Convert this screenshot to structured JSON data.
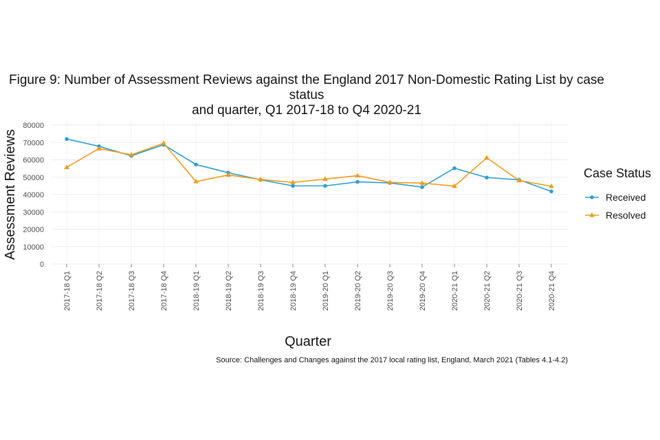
{
  "chart_data": {
    "type": "line",
    "title_line1": "Figure 9: Number of Assessment Reviews against the England 2017 Non-Domestic Rating List by case status",
    "title_line2": "and quarter, Q1 2017-18 to Q4 2020-21",
    "xlabel": "Quarter",
    "ylabel": "Assessment Reviews",
    "ylim": [
      0,
      80000
    ],
    "yticks": [
      0,
      10000,
      20000,
      30000,
      40000,
      50000,
      60000,
      70000,
      80000
    ],
    "grid": true,
    "legend_title": "Case Status",
    "legend_position": "right",
    "categories": [
      "2017-18 Q1",
      "2017-18 Q2",
      "2017-18 Q3",
      "2017-18 Q4",
      "2018-19 Q1",
      "2018-19 Q2",
      "2018-19 Q3",
      "2018-19 Q4",
      "2019-20 Q1",
      "2019-20 Q2",
      "2019-20 Q3",
      "2019-20 Q4",
      "2020-21 Q1",
      "2020-21 Q2",
      "2020-21 Q3",
      "2020-21 Q4"
    ],
    "series": [
      {
        "name": "Received",
        "color": "#2b9fd1",
        "marker": "circle",
        "values": [
          72000,
          67800,
          62300,
          68700,
          57300,
          52600,
          48500,
          45000,
          45000,
          47300,
          46700,
          44300,
          55200,
          49800,
          48500,
          41800
        ]
      },
      {
        "name": "Resolved",
        "color": "#f29a1a",
        "marker": "triangle",
        "values": [
          55700,
          66500,
          62900,
          69600,
          47500,
          51300,
          48700,
          47000,
          48900,
          50900,
          47000,
          46600,
          44900,
          61200,
          48100,
          44800
        ]
      }
    ],
    "source": "Source: Challenges and Changes against the 2017 local rating list, England, March 2021 (Tables 4.1-4.2)"
  }
}
